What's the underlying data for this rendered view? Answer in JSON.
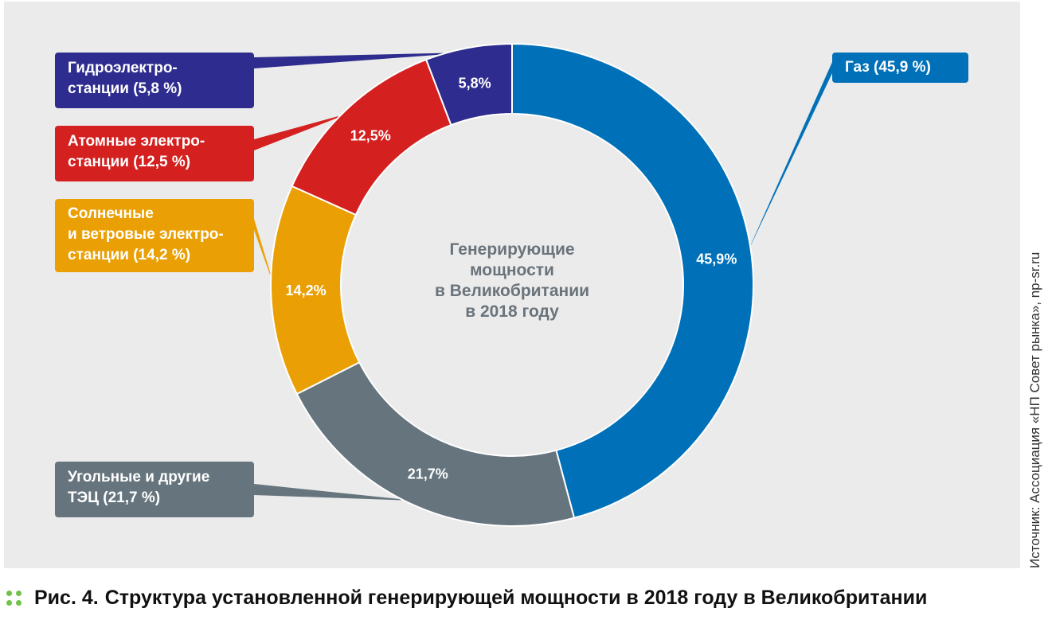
{
  "chart_data": {
    "type": "pie",
    "donut": true,
    "center_label": "Генерирующие\nмощности\nв Великобритании\nв 2018 году",
    "slices": [
      {
        "name": "Газ",
        "value": 45.9,
        "value_label": "45,9%",
        "legend": "Газ (45,9 %)",
        "color": "#0071b8"
      },
      {
        "name": "Угольные и другие ТЭЦ",
        "value": 21.7,
        "value_label": "21,7%",
        "legend": "Угольные и другие\nТЭЦ (21,7 %)",
        "color": "#66757d"
      },
      {
        "name": "Солнечные и ветровые электростанции",
        "value": 14.2,
        "value_label": "14,2%",
        "legend": "Солнечные\nи ветровые электро-\nстанции (14,2 %)",
        "color": "#eaa005"
      },
      {
        "name": "Атомные электростанции",
        "value": 12.5,
        "value_label": "12,5%",
        "legend": "Атомные электро-\nстанции (12,5 %)",
        "color": "#d4201f"
      },
      {
        "name": "Гидроэлектростанции",
        "value": 5.8,
        "value_label": "5,8%",
        "legend": "Гидроэлектро-\nстанции (5,8 %)",
        "color": "#2e2d8f"
      }
    ]
  },
  "caption": {
    "figure": "Рис. 4.",
    "text": "Структура установленной генерирующей мощности в 2018 году в Великобритании",
    "marker_color": "#72c24a"
  },
  "source": "Источник: Ассоциация «НП Совет рынка», np-sr.ru"
}
